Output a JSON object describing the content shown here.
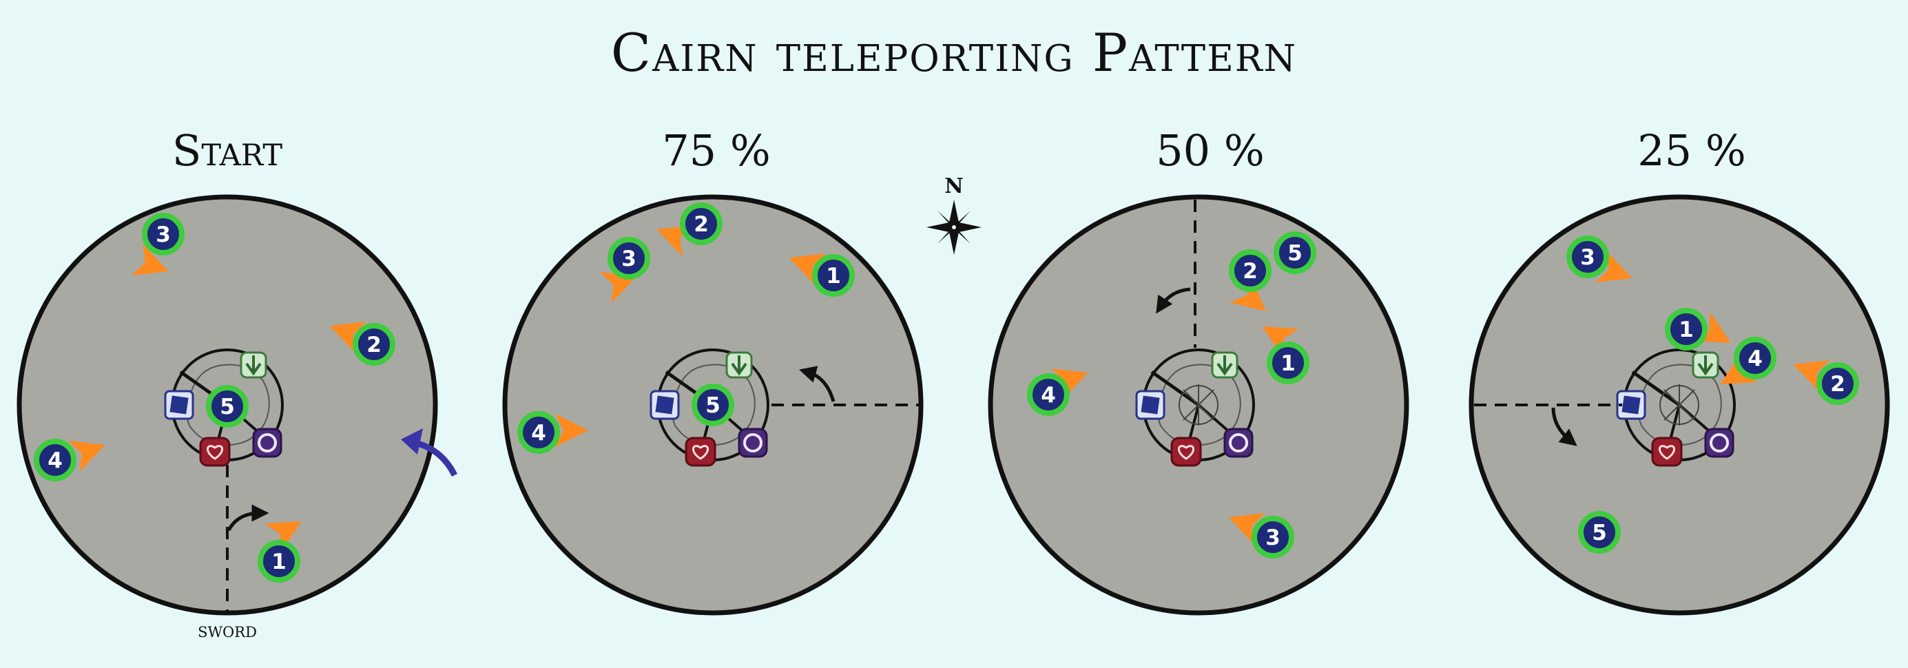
{
  "title": "Cairn teleporting Pattern",
  "compass_label": "N",
  "sword_label": "sword",
  "colors": {
    "background": "#e6f8f8",
    "arena": "#a9a9a3",
    "marker_fill": "#1c2a78",
    "marker_ring": "#3fcc3f",
    "arrow": "#ff8a1e",
    "rotate_arrow": "#3b33a8"
  },
  "panels": [
    {
      "label": "Start",
      "markers": [
        {
          "number": "3"
        },
        {
          "number": "2"
        },
        {
          "number": "4"
        },
        {
          "number": "1"
        },
        {
          "number": "5"
        }
      ]
    },
    {
      "label": "75 %",
      "markers": [
        {
          "number": "3"
        },
        {
          "number": "2"
        },
        {
          "number": "1"
        },
        {
          "number": "4"
        },
        {
          "number": "5"
        }
      ]
    },
    {
      "label": "50 %",
      "markers": [
        {
          "number": "2"
        },
        {
          "number": "5"
        },
        {
          "number": "1"
        },
        {
          "number": "4"
        },
        {
          "number": "3"
        }
      ]
    },
    {
      "label": "25 %",
      "markers": [
        {
          "number": "3"
        },
        {
          "number": "1"
        },
        {
          "number": "4"
        },
        {
          "number": "2"
        },
        {
          "number": "5"
        }
      ]
    }
  ]
}
